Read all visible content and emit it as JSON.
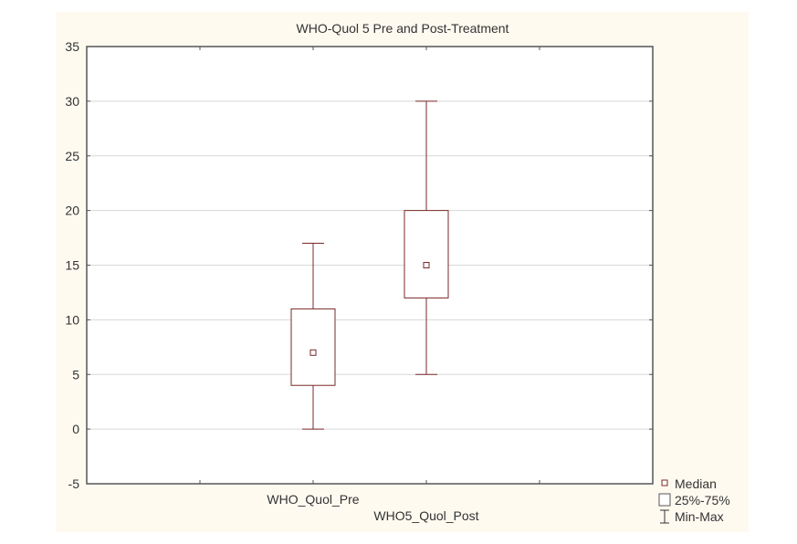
{
  "chart_data": {
    "type": "box",
    "title": "WHO-Quol 5 Pre and Post-Treatment",
    "xlabel": "",
    "ylabel": "",
    "ylim": [
      -5,
      35
    ],
    "yticks": [
      -5,
      0,
      5,
      10,
      15,
      20,
      25,
      30,
      35
    ],
    "grid": true,
    "categories": [
      "WHO_Quol_Pre",
      "WHO5_Quol_Post"
    ],
    "series": [
      {
        "name": "WHO_Quol_Pre",
        "min": 0,
        "q1": 4,
        "median": 7,
        "q3": 11,
        "max": 17
      },
      {
        "name": "WHO5_Quol_Post",
        "min": 5,
        "q1": 12,
        "median": 15,
        "q3": 20,
        "max": 30
      }
    ],
    "legend": {
      "position": "bottom-right",
      "entries": [
        "Median",
        "25%-75%",
        "Min-Max"
      ]
    },
    "colors": {
      "box": "#7a2a2a",
      "panel": "#fffaf0",
      "grid": "#d8d8d8",
      "frame": "#555555"
    }
  }
}
